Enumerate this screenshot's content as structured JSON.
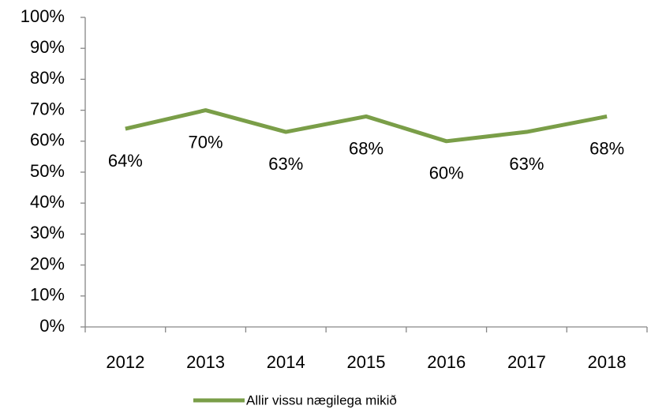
{
  "chart_data": {
    "type": "line",
    "categories": [
      "2012",
      "2013",
      "2014",
      "2015",
      "2016",
      "2017",
      "2018"
    ],
    "series": [
      {
        "name": "Allir vissu nægilega mikið",
        "color": "#7a9e48",
        "values": [
          64,
          70,
          63,
          68,
          60,
          63,
          68
        ],
        "value_labels": [
          "64%",
          "70%",
          "63%",
          "68%",
          "60%",
          "63%",
          "68%"
        ]
      }
    ],
    "ylim": [
      0,
      100
    ],
    "yticks": [
      {
        "value": 0,
        "label": "0%"
      },
      {
        "value": 10,
        "label": "10%"
      },
      {
        "value": 20,
        "label": "20%"
      },
      {
        "value": 30,
        "label": "30%"
      },
      {
        "value": 40,
        "label": "40%"
      },
      {
        "value": 50,
        "label": "50%"
      },
      {
        "value": 60,
        "label": "60%"
      },
      {
        "value": 70,
        "label": "70%"
      },
      {
        "value": 80,
        "label": "80%"
      },
      {
        "value": 90,
        "label": "90%"
      },
      {
        "value": 100,
        "label": "100%"
      }
    ],
    "grid": false,
    "legend": "bottom"
  }
}
